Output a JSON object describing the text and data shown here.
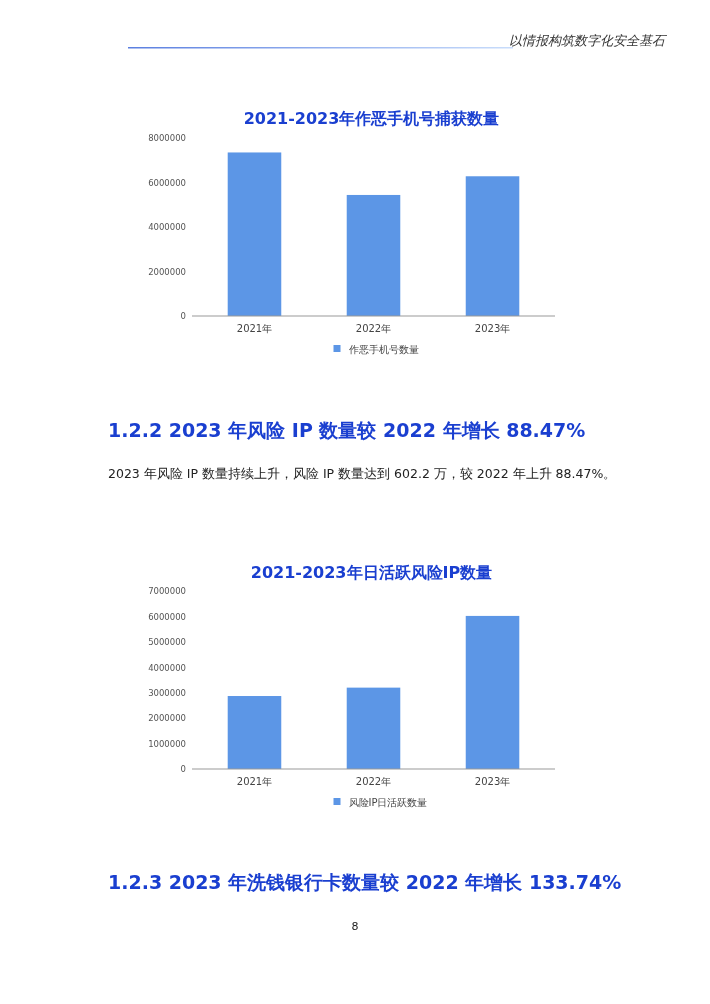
{
  "chart_data": [
    {
      "type": "bar",
      "title": "2021-2023年作恶手机号捕获数量",
      "categories": [
        "2021年",
        "2022年",
        "2023年"
      ],
      "series": [
        {
          "name": "作恶手机号数量",
          "color": "#5c96e6",
          "values": [
            7350000,
            5440000,
            6280000
          ]
        }
      ],
      "ylim": [
        0,
        8000000
      ],
      "yticks": [
        0,
        2000000,
        4000000,
        6000000,
        8000000
      ],
      "grid": false,
      "legend": "bottom",
      "annotations": [
        "以情报构筑数字化安全基石"
      ]
    },
    {
      "type": "bar",
      "title": "2021-2023年日活跃风险IP数量",
      "categories": [
        "2021年",
        "2022年",
        "2023年"
      ],
      "series": [
        {
          "name": "风险IP日活跃数量",
          "color": "#5c96e6",
          "values": [
            2870000,
            3200000,
            6020000
          ]
        }
      ],
      "ylim": [
        0,
        7000000
      ],
      "yticks": [
        0,
        1000000,
        2000000,
        3000000,
        4000000,
        5000000,
        6000000,
        7000000
      ],
      "grid": false,
      "legend": "bottom",
      "annotations": [
        "1.2.2 2023 年风险 IP 数量较 2022 年增长 88.47%",
        "2023 年风险 IP 数量持续上升，风险 IP 数量达到 602.2 万，较 2022 年上升 88.47%。",
        "1.2.3 2023 年洗钱银行卡数量较 2022 年增长 133.74%",
        "8"
      ]
    }
  ]
}
